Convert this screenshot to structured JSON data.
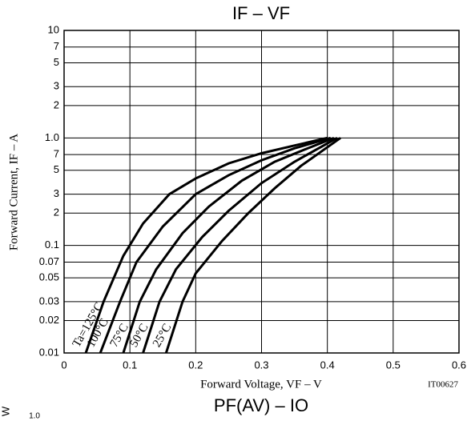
{
  "chart_data": {
    "type": "line",
    "title": "IF – VF",
    "x_label": "Forward Voltage, VF – V",
    "y_label": "Forward Current, IF – A",
    "annotation": "IT00627",
    "log_y": true,
    "grid": true,
    "xlim": [
      0,
      0.6
    ],
    "xticks": [
      0,
      0.1,
      0.2,
      0.3,
      0.4,
      0.5,
      0.6
    ],
    "ylim": [
      0.01,
      10
    ],
    "yticks": [
      0.01,
      0.02,
      0.03,
      0.05,
      0.07,
      {
        "value": 0.1,
        "label": "0.1"
      },
      {
        "value": 0.2,
        "label": "2"
      },
      {
        "value": 0.3,
        "label": "3"
      },
      {
        "value": 0.5,
        "label": "5"
      },
      {
        "value": 0.7,
        "label": "7"
      },
      {
        "value": 1,
        "label": "1.0"
      },
      2,
      3,
      5,
      7,
      10
    ],
    "series": [
      {
        "name": "Ta=125°C",
        "color": "#000000",
        "x": [
          0.033,
          0.06,
          0.09,
          0.12,
          0.16,
          0.2,
          0.25,
          0.3,
          0.35,
          0.4
        ],
        "values": [
          0.01,
          0.03,
          0.08,
          0.16,
          0.3,
          0.42,
          0.58,
          0.72,
          0.85,
          1.0
        ]
      },
      {
        "name": "100°C",
        "color": "#000000",
        "x": [
          0.055,
          0.085,
          0.11,
          0.15,
          0.2,
          0.25,
          0.3,
          0.35,
          0.405
        ],
        "values": [
          0.01,
          0.03,
          0.07,
          0.15,
          0.3,
          0.45,
          0.62,
          0.8,
          1.0
        ]
      },
      {
        "name": "75°C",
        "color": "#000000",
        "x": [
          0.09,
          0.115,
          0.14,
          0.18,
          0.22,
          0.27,
          0.32,
          0.37,
          0.41
        ],
        "values": [
          0.01,
          0.03,
          0.06,
          0.13,
          0.23,
          0.4,
          0.6,
          0.8,
          1.0
        ]
      },
      {
        "name": "50°C",
        "color": "#000000",
        "x": [
          0.12,
          0.145,
          0.17,
          0.21,
          0.25,
          0.3,
          0.35,
          0.415
        ],
        "values": [
          0.01,
          0.03,
          0.06,
          0.12,
          0.21,
          0.38,
          0.6,
          1.0
        ]
      },
      {
        "name": "25°C",
        "color": "#000000",
        "x": [
          0.155,
          0.18,
          0.2,
          0.24,
          0.28,
          0.32,
          0.36,
          0.42
        ],
        "values": [
          0.01,
          0.03,
          0.055,
          0.11,
          0.2,
          0.34,
          0.55,
          1.0
        ]
      }
    ]
  },
  "next_chart": {
    "title": "PF(AV) – IO",
    "y_unit": "W",
    "first_tick": "1.0"
  }
}
